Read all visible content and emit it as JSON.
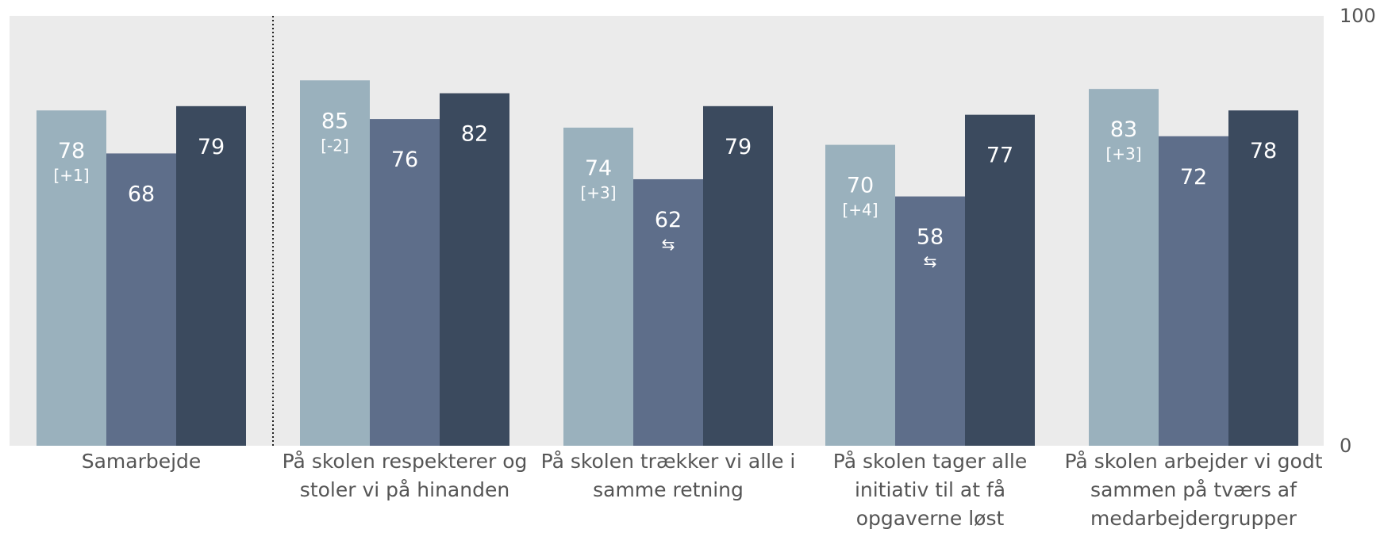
{
  "chart_data": {
    "type": "bar",
    "categories": [
      "Samarbejde",
      "På skolen respekterer og stoler vi på hinanden",
      "På skolen trækker vi alle i samme retning",
      "På skolen tager alle initiativ til at få opgaverne løst",
      "På skolen arbejder vi godt sammen på tværs af medarbejdergrupper"
    ],
    "category_lines": [
      [
        "Samarbejde"
      ],
      [
        "På skolen respekterer og",
        "stoler vi på hinanden"
      ],
      [
        "På skolen trækker vi alle i",
        "samme retning"
      ],
      [
        "På skolen tager alle",
        "initiativ til at få",
        "opgaverne løst"
      ],
      [
        "På skolen arbejder vi godt",
        "sammen på tværs af",
        "medarbejdergrupper"
      ]
    ],
    "series": [
      {
        "values": [
          78,
          85,
          74,
          70,
          83
        ],
        "annotations": [
          "[+1]",
          "[-2]",
          "[+3]",
          "[+4]",
          "[+3]"
        ],
        "color": "#9ab1bd"
      },
      {
        "values": [
          68,
          76,
          62,
          58,
          72
        ],
        "annotations": [
          "",
          "",
          "⇆",
          "⇆",
          ""
        ],
        "color": "#5e6e8a"
      },
      {
        "values": [
          79,
          82,
          79,
          77,
          78
        ],
        "annotations": [
          "",
          "",
          "",
          "",
          ""
        ],
        "color": "#3b4a5e"
      }
    ],
    "ylim": [
      0,
      100
    ],
    "yticks": [
      "0",
      "100"
    ],
    "separator_after_index": 0,
    "plot_background": "#ebebeb"
  }
}
